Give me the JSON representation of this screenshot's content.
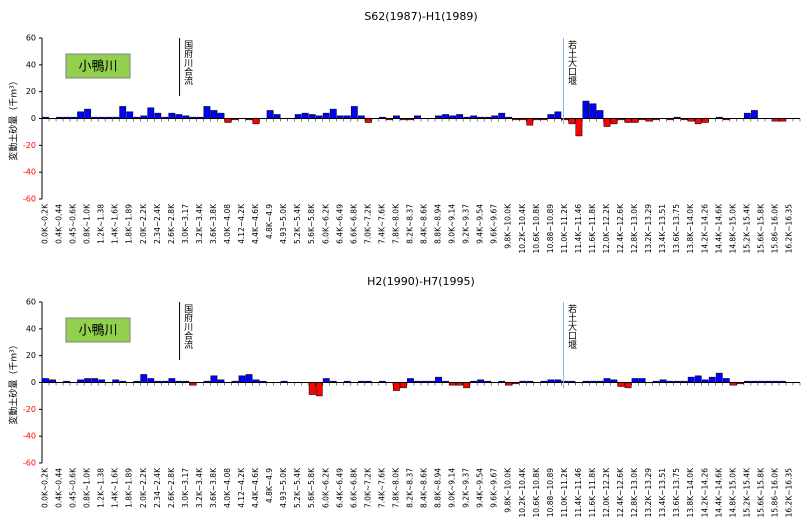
{
  "chart_data": [
    {
      "type": "bar",
      "title": "S62(1987)-H1(1989)",
      "y_label": "変動土砂量（千m³）",
      "river_label": "小鴨川",
      "annotations": [
        "国府川合流",
        "若土大口堰"
      ],
      "categories": [
        "0.0K~0.2K",
        null,
        "0.4K~0.44",
        null,
        "0.45~0.6K",
        null,
        "0.8K~1.0K",
        null,
        "1.2K~1.38",
        null,
        "1.4K~1.6K",
        null,
        "1.8K~1.89",
        null,
        "2.0K~2.2K",
        null,
        "2.34~2.4K",
        null,
        "2.6K~2.8K",
        null,
        "3.0K~3.17",
        null,
        "3.2K~3.4K",
        null,
        "3.6K~3.8K",
        null,
        "4.0K~4.08",
        null,
        "4.12~4.2K",
        null,
        "4.4K~4.6K",
        null,
        "4.8K~4.9",
        null,
        "4.93~5.0K",
        null,
        "5.2K~5.4K",
        null,
        "5.6K~5.8K",
        null,
        "6.0K~6.2K",
        null,
        "6.4K~6.49",
        null,
        "6.6K~6.8K",
        null,
        "7.0K~7.2K",
        null,
        "7.4K~7.6K",
        null,
        "7.8K~8.0K",
        null,
        "8.2K~8.37",
        null,
        "8.4K~8.6K",
        null,
        "8.8K~8.94",
        null,
        "9.0K~9.14",
        null,
        "9.2K~9.37",
        null,
        "9.4K~9.54",
        null,
        "9.6K~9.67",
        null,
        "9.8K~10.0K",
        null,
        "10.2K~10.4K",
        null,
        "10.6K~10.8K",
        null,
        "10.88~10.89",
        null,
        "11.0K~11.2K",
        null,
        "11.4K~11.46",
        null,
        "11.6K~11.8K",
        null,
        "12.0K~12.2K",
        null,
        "12.4K~12.6K",
        null,
        "12.8K~13.0K",
        null,
        "13.2K~13.29",
        null,
        "13.4K~13.51",
        null,
        "13.6K~13.75",
        null,
        "13.8K~14.0K",
        null,
        "14.2K~14.26",
        null,
        "14.4K~14.6K",
        null,
        "14.8K~15.0K",
        null,
        "15.2K~15.4K",
        null,
        "15.6K~15.8K",
        null,
        "15.86~16.0K",
        null,
        "16.2K~16.35",
        null
      ],
      "values": [
        1,
        0,
        1,
        1,
        1,
        5,
        7,
        1,
        1,
        1,
        1,
        9,
        5,
        1,
        2,
        8,
        4,
        1,
        4,
        3,
        2,
        1,
        1,
        9,
        6,
        4,
        -3,
        -1,
        0,
        -1,
        -4,
        0,
        6,
        3,
        0,
        0,
        3,
        4,
        3,
        2,
        4,
        7,
        2,
        2,
        9,
        2,
        -3,
        0,
        1,
        -1,
        2,
        -1,
        -1,
        2,
        0,
        0,
        2,
        3,
        2,
        3,
        1,
        2,
        1,
        1,
        2,
        4,
        1,
        -1,
        -1,
        -5,
        -1,
        -1,
        3,
        5,
        -1,
        -4,
        -13,
        13,
        11,
        6,
        -6,
        -4,
        -1,
        -3,
        -3,
        -1,
        -2,
        -1,
        0,
        -1,
        1,
        -1,
        -2,
        -4,
        -3,
        0,
        1,
        -1,
        0,
        0,
        4,
        6,
        0,
        0,
        -2,
        -2,
        0,
        0
      ],
      "color": "#0000ff",
      "negative_color": "#ff0000",
      "ylim": [
        -60,
        60
      ],
      "yticks": [
        -60,
        -40,
        -20,
        0,
        20,
        40,
        60
      ]
    },
    {
      "type": "bar",
      "title": "H2(1990)-H7(1995)",
      "y_label": "変動土砂量（千m³）",
      "river_label": "小鴨川",
      "annotations": [
        "国府川合流",
        "若土大口堰"
      ],
      "categories": [
        "0.0K~0.2K",
        null,
        "0.4K~0.44",
        null,
        "0.45~0.6K",
        null,
        "0.8K~1.0K",
        null,
        "1.2K~1.38",
        null,
        "1.4K~1.6K",
        null,
        "1.8K~1.89",
        null,
        "2.0K~2.2K",
        null,
        "2.34~2.4K",
        null,
        "2.6K~2.8K",
        null,
        "3.0K~3.17",
        null,
        "3.2K~3.4K",
        null,
        "3.6K~3.8K",
        null,
        "4.0K~4.08",
        null,
        "4.12~4.2K",
        null,
        "4.4K~4.6K",
        null,
        "4.8K~4.9",
        null,
        "4.93~5.0K",
        null,
        "5.2K~5.4K",
        null,
        "5.6K~5.8K",
        null,
        "6.0K~6.2K",
        null,
        "6.4K~6.49",
        null,
        "6.6K~6.8K",
        null,
        "7.0K~7.2K",
        null,
        "7.4K~7.6K",
        null,
        "7.8K~8.0K",
        null,
        "8.2K~8.37",
        null,
        "8.4K~8.6K",
        null,
        "8.8K~8.94",
        null,
        "9.0K~9.14",
        null,
        "9.2K~9.37",
        null,
        "9.4K~9.54",
        null,
        "9.6K~9.67",
        null,
        "9.8K~10.0K",
        null,
        "10.2K~10.4K",
        null,
        "10.6K~10.8K",
        null,
        "10.88~10.89",
        null,
        "11.0K~11.2K",
        null,
        "11.4K~11.46",
        null,
        "11.6K~11.8K",
        null,
        "12.0K~12.2K",
        null,
        "12.4K~12.6K",
        null,
        "12.8K~13.0K",
        null,
        "13.2K~13.29",
        null,
        "13.4K~13.51",
        null,
        "13.6K~13.75",
        null,
        "13.8K~14.0K",
        null,
        "14.2K~14.26",
        null,
        "14.4K~14.6K",
        null,
        "14.8K~15.0K",
        null,
        "15.2K~15.4K",
        null,
        "15.6K~15.8K",
        null,
        "15.86~16.0K",
        null,
        "16.2K~16.35",
        null
      ],
      "values": [
        3,
        2,
        0,
        1,
        0,
        2,
        3,
        3,
        2,
        0,
        2,
        1,
        0,
        1,
        6,
        3,
        1,
        1,
        3,
        1,
        1,
        -2,
        0,
        1,
        5,
        2,
        0,
        1,
        5,
        6,
        2,
        1,
        0,
        0,
        1,
        0,
        0,
        0,
        -9,
        -10,
        3,
        1,
        0,
        1,
        0,
        1,
        1,
        0,
        1,
        0,
        -6,
        -4,
        3,
        1,
        1,
        1,
        4,
        1,
        -2,
        -2,
        -4,
        1,
        2,
        1,
        0,
        1,
        -2,
        -1,
        1,
        1,
        0,
        1,
        2,
        2,
        1,
        1,
        0,
        1,
        1,
        1,
        3,
        2,
        -3,
        -4,
        3,
        3,
        0,
        1,
        2,
        1,
        1,
        1,
        4,
        5,
        2,
        4,
        7,
        3,
        -2,
        -1,
        1,
        1,
        1,
        1,
        1,
        1,
        0,
        0
      ],
      "color": "#0000ff",
      "negative_color": "#ff0000",
      "ylim": [
        -60,
        60
      ],
      "yticks": [
        -60,
        -40,
        -20,
        0,
        20,
        40,
        60
      ]
    }
  ]
}
